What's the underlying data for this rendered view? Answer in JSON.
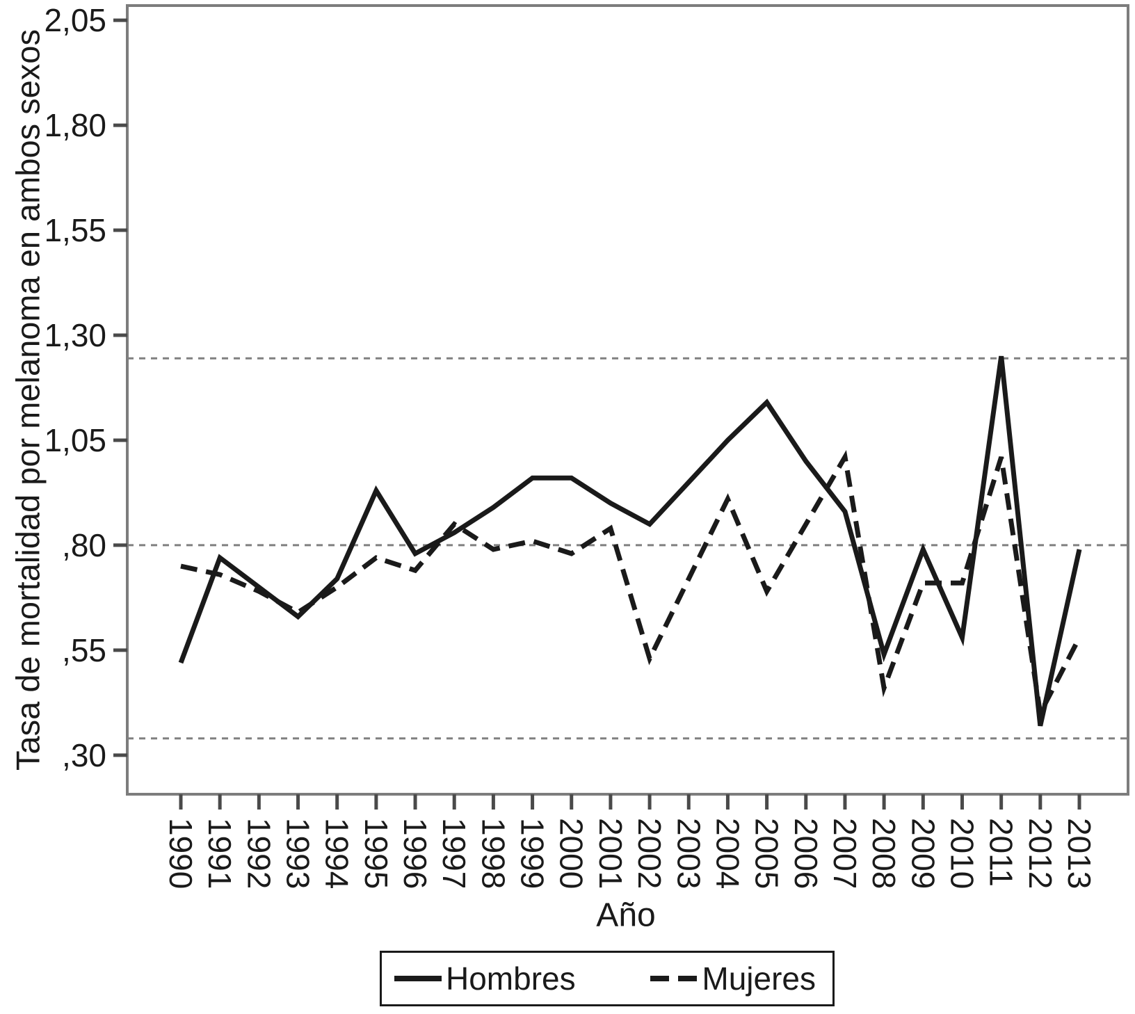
{
  "chart_data": {
    "type": "line",
    "title": "",
    "xlabel": "Año",
    "ylabel": "Tasa de mortalidad por melanoma en ambos sexos",
    "x": [
      "1990",
      "1991",
      "1992",
      "1993",
      "1994",
      "1995",
      "1996",
      "1997",
      "1998",
      "1999",
      "2000",
      "2001",
      "2002",
      "2003",
      "2004",
      "2005",
      "2006",
      "2007",
      "2008",
      "2009",
      "2010",
      "2011",
      "2012",
      "2013"
    ],
    "series": [
      {
        "name": "Hombres",
        "style": "solid",
        "values": [
          0.52,
          0.77,
          0.7,
          0.63,
          0.72,
          0.93,
          0.78,
          0.83,
          0.89,
          0.96,
          0.96,
          0.9,
          0.85,
          0.95,
          1.05,
          1.14,
          1.0,
          0.88,
          0.54,
          0.79,
          0.58,
          1.25,
          0.37,
          0.79
        ]
      },
      {
        "name": "Mujeres",
        "style": "dashed",
        "values": [
          0.75,
          0.73,
          0.69,
          0.64,
          0.7,
          0.77,
          0.74,
          0.85,
          0.79,
          0.81,
          0.78,
          0.84,
          0.53,
          0.72,
          0.91,
          0.69,
          0.85,
          1.01,
          0.46,
          0.71,
          0.71,
          1.01,
          0.4,
          0.58
        ]
      }
    ],
    "y_ticks": [
      {
        "value": 2.05,
        "label": "2,05"
      },
      {
        "value": 1.8,
        "label": "1,80"
      },
      {
        "value": 1.55,
        "label": "1,55"
      },
      {
        "value": 1.3,
        "label": "1,30"
      },
      {
        "value": 1.05,
        "label": "1,05"
      },
      {
        "value": 0.8,
        "label": ",80"
      },
      {
        "value": 0.55,
        "label": ",55"
      },
      {
        "value": 0.3,
        "label": ",30"
      }
    ],
    "reference_lines": [
      1.245,
      0.8,
      0.34
    ],
    "ylim": [
      0.207,
      2.085
    ],
    "grid": false,
    "legend_position": "bottom",
    "line_color": "#1a1a1a",
    "reference_line_color": "#808080"
  }
}
